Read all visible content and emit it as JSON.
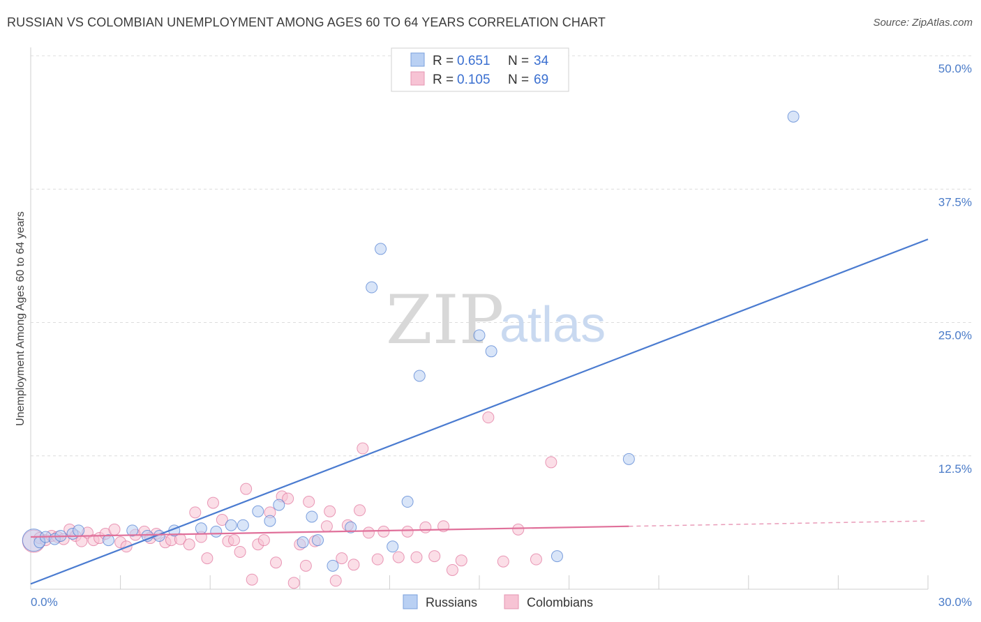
{
  "title": "RUSSIAN VS COLOMBIAN UNEMPLOYMENT AMONG AGES 60 TO 64 YEARS CORRELATION CHART",
  "source": "Source: ZipAtlas.com",
  "watermark": {
    "zip": "ZIP",
    "atlas": "atlas"
  },
  "colors": {
    "russians": "#4a7bd0",
    "russians_fill": "#b9d0f3",
    "colombians": "#e0709a",
    "colombians_fill": "#f7c3d4"
  },
  "legend": {
    "r_label": "R =",
    "n_label": "N =",
    "russians": {
      "r": "0.651",
      "n": "34"
    },
    "colombians": {
      "r": "0.105",
      "n": "69"
    }
  },
  "chart_data": {
    "type": "scatter",
    "title": "RUSSIAN VS COLOMBIAN UNEMPLOYMENT AMONG AGES 60 TO 64 YEARS CORRELATION CHART",
    "xlabel": "",
    "ylabel": "Unemployment Among Ages 60 to 64 years",
    "xlim": [
      0,
      30
    ],
    "ylim": [
      0,
      50
    ],
    "x_tick_labels": [
      "0.0%",
      "30.0%"
    ],
    "y_ticks": [
      12.5,
      25.0,
      37.5,
      50.0
    ],
    "y_tick_labels": [
      "12.5%",
      "25.0%",
      "37.5%",
      "50.0%"
    ],
    "grid": "horizontal dashed",
    "legend_position": "top-center",
    "series": [
      {
        "name": "Russians",
        "points": [
          [
            0.1,
            4.6
          ],
          [
            0.3,
            4.4
          ],
          [
            0.5,
            4.9
          ],
          [
            0.8,
            4.7
          ],
          [
            1.0,
            5.0
          ],
          [
            1.4,
            5.2
          ],
          [
            1.6,
            5.5
          ],
          [
            2.6,
            4.6
          ],
          [
            3.4,
            5.5
          ],
          [
            3.9,
            5.0
          ],
          [
            4.3,
            5.0
          ],
          [
            4.8,
            5.5
          ],
          [
            5.7,
            5.7
          ],
          [
            6.2,
            5.4
          ],
          [
            6.7,
            6.0
          ],
          [
            7.1,
            6.0
          ],
          [
            7.6,
            7.3
          ],
          [
            8.0,
            6.4
          ],
          [
            8.3,
            7.9
          ],
          [
            9.1,
            4.4
          ],
          [
            9.4,
            6.8
          ],
          [
            9.6,
            4.6
          ],
          [
            10.1,
            2.2
          ],
          [
            10.7,
            5.8
          ],
          [
            11.4,
            28.3
          ],
          [
            11.7,
            31.9
          ],
          [
            12.1,
            4.0
          ],
          [
            12.6,
            8.2
          ],
          [
            13.0,
            20.0
          ],
          [
            15.0,
            23.8
          ],
          [
            15.4,
            22.3
          ],
          [
            17.6,
            3.1
          ],
          [
            20.0,
            12.2
          ],
          [
            25.5,
            44.3
          ]
        ],
        "trend": {
          "x": [
            0,
            30
          ],
          "y": [
            0.5,
            32.8
          ]
        }
      },
      {
        "name": "Colombians",
        "points": [
          [
            0.1,
            4.5
          ],
          [
            0.3,
            4.8
          ],
          [
            0.5,
            4.6
          ],
          [
            0.7,
            5.0
          ],
          [
            0.9,
            4.9
          ],
          [
            1.1,
            4.7
          ],
          [
            1.3,
            5.6
          ],
          [
            1.5,
            5.0
          ],
          [
            1.7,
            4.5
          ],
          [
            1.9,
            5.3
          ],
          [
            2.1,
            4.6
          ],
          [
            2.3,
            4.8
          ],
          [
            2.5,
            5.2
          ],
          [
            2.8,
            5.6
          ],
          [
            3.0,
            4.4
          ],
          [
            3.2,
            4.0
          ],
          [
            3.5,
            5.1
          ],
          [
            3.8,
            5.4
          ],
          [
            4.0,
            4.8
          ],
          [
            4.2,
            5.2
          ],
          [
            4.5,
            4.4
          ],
          [
            4.7,
            4.6
          ],
          [
            5.0,
            4.7
          ],
          [
            5.3,
            4.2
          ],
          [
            5.5,
            7.2
          ],
          [
            5.7,
            4.9
          ],
          [
            5.9,
            2.9
          ],
          [
            6.1,
            8.1
          ],
          [
            6.4,
            6.5
          ],
          [
            6.6,
            4.5
          ],
          [
            6.8,
            4.6
          ],
          [
            7.0,
            3.5
          ],
          [
            7.2,
            9.4
          ],
          [
            7.4,
            0.9
          ],
          [
            7.6,
            4.2
          ],
          [
            7.8,
            4.6
          ],
          [
            8.0,
            7.2
          ],
          [
            8.2,
            2.5
          ],
          [
            8.4,
            8.7
          ],
          [
            8.6,
            8.5
          ],
          [
            8.8,
            0.6
          ],
          [
            9.0,
            4.2
          ],
          [
            9.2,
            2.2
          ],
          [
            9.3,
            8.2
          ],
          [
            9.5,
            4.5
          ],
          [
            9.9,
            5.9
          ],
          [
            10.0,
            7.3
          ],
          [
            10.2,
            0.8
          ],
          [
            10.4,
            2.9
          ],
          [
            10.6,
            6.0
          ],
          [
            10.8,
            2.3
          ],
          [
            11.0,
            7.4
          ],
          [
            11.1,
            13.2
          ],
          [
            11.3,
            5.3
          ],
          [
            11.6,
            2.8
          ],
          [
            11.8,
            5.4
          ],
          [
            12.3,
            3.0
          ],
          [
            12.6,
            5.4
          ],
          [
            12.9,
            3.0
          ],
          [
            13.2,
            5.8
          ],
          [
            13.5,
            3.1
          ],
          [
            13.8,
            5.9
          ],
          [
            14.1,
            1.8
          ],
          [
            14.4,
            2.7
          ],
          [
            15.3,
            16.1
          ],
          [
            15.8,
            2.6
          ],
          [
            16.3,
            5.6
          ],
          [
            16.9,
            2.8
          ],
          [
            17.4,
            11.9
          ]
        ],
        "trend": {
          "x": [
            0,
            20
          ],
          "y": [
            4.9,
            5.9
          ]
        },
        "trend_extension": {
          "x": [
            20,
            30
          ],
          "y": [
            5.9,
            6.4
          ]
        }
      }
    ]
  },
  "bottom_legend": [
    "Russians",
    "Colombians"
  ]
}
